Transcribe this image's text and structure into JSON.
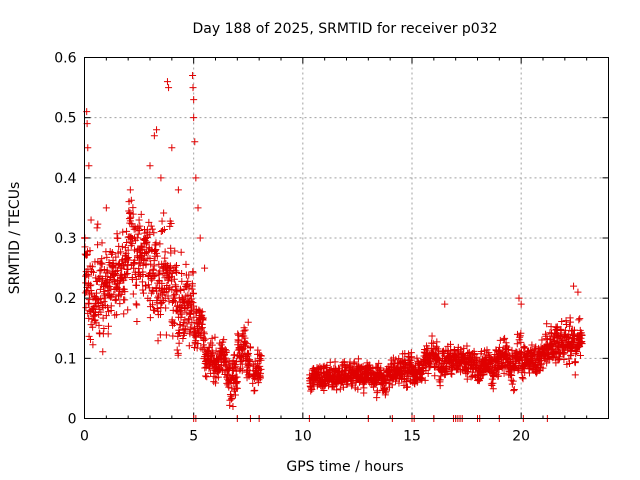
{
  "chart_data": {
    "type": "scatter",
    "title": "Day 188 of 2025, SRMTID for receiver p032",
    "xlabel": "GPS time / hours",
    "ylabel": "SRMTID / TECUs",
    "xlim": [
      0,
      24
    ],
    "ylim": [
      0,
      0.6
    ],
    "xticks": [
      "0",
      "5",
      "10",
      "15",
      "20"
    ],
    "yticks": [
      "0",
      "0.1",
      "0.2",
      "0.3",
      "0.4",
      "0.5",
      "0.6"
    ],
    "marker": "+",
    "color": "#e00000",
    "grid": true,
    "series": [
      {
        "name": "SRMTID",
        "segments": [
          {
            "t0": 0.0,
            "t1": 1.0,
            "mean": 0.22,
            "spread": 0.09
          },
          {
            "t0": 1.0,
            "t1": 2.0,
            "mean": 0.24,
            "spread": 0.08
          },
          {
            "t0": 2.0,
            "t1": 3.0,
            "mean": 0.27,
            "spread": 0.09
          },
          {
            "t0": 3.0,
            "t1": 4.0,
            "mean": 0.24,
            "spread": 0.1
          },
          {
            "t0": 4.0,
            "t1": 5.0,
            "mean": 0.2,
            "spread": 0.08
          },
          {
            "t0": 5.0,
            "t1": 5.5,
            "mean": 0.14,
            "spread": 0.05
          },
          {
            "t0": 5.5,
            "t1": 6.5,
            "mean": 0.1,
            "spread": 0.04
          },
          {
            "t0": 6.5,
            "t1": 7.0,
            "mean": 0.07,
            "spread": 0.04
          },
          {
            "t0": 7.0,
            "t1": 7.6,
            "mean": 0.11,
            "spread": 0.04
          },
          {
            "t0": 7.7,
            "t1": 8.1,
            "mean": 0.08,
            "spread": 0.03
          },
          {
            "t0": 10.3,
            "t1": 12.0,
            "mean": 0.07,
            "spread": 0.025
          },
          {
            "t0": 12.0,
            "t1": 14.0,
            "mean": 0.07,
            "spread": 0.025
          },
          {
            "t0": 14.0,
            "t1": 15.5,
            "mean": 0.08,
            "spread": 0.03
          },
          {
            "t0": 15.5,
            "t1": 17.0,
            "mean": 0.1,
            "spread": 0.03
          },
          {
            "t0": 17.0,
            "t1": 19.0,
            "mean": 0.09,
            "spread": 0.03
          },
          {
            "t0": 19.0,
            "t1": 21.0,
            "mean": 0.1,
            "spread": 0.035
          },
          {
            "t0": 21.0,
            "t1": 22.8,
            "mean": 0.12,
            "spread": 0.04
          }
        ],
        "points": [
          [
            0.1,
            0.51
          ],
          [
            0.12,
            0.49
          ],
          [
            0.15,
            0.45
          ],
          [
            0.2,
            0.42
          ],
          [
            0.3,
            0.33
          ],
          [
            0.5,
            0.2
          ],
          [
            1.0,
            0.35
          ],
          [
            1.5,
            0.3
          ],
          [
            2.1,
            0.38
          ],
          [
            2.5,
            0.33
          ],
          [
            3.0,
            0.42
          ],
          [
            3.2,
            0.47
          ],
          [
            3.3,
            0.48
          ],
          [
            3.5,
            0.4
          ],
          [
            3.8,
            0.56
          ],
          [
            3.85,
            0.55
          ],
          [
            4.0,
            0.45
          ],
          [
            4.3,
            0.38
          ],
          [
            4.95,
            0.57
          ],
          [
            4.97,
            0.55
          ],
          [
            5.0,
            0.53
          ],
          [
            5.0,
            0.5
          ],
          [
            5.05,
            0.46
          ],
          [
            5.1,
            0.4
          ],
          [
            5.2,
            0.35
          ],
          [
            5.3,
            0.3
          ],
          [
            5.5,
            0.25
          ],
          [
            6.8,
            0.02
          ],
          [
            7.0,
            0.05
          ],
          [
            7.5,
            0.16
          ],
          [
            16.5,
            0.19
          ],
          [
            19.9,
            0.2
          ],
          [
            20.0,
            0.19
          ],
          [
            22.4,
            0.22
          ],
          [
            22.6,
            0.21
          ],
          [
            5.0,
            0.0
          ],
          [
            5.1,
            0.0
          ],
          [
            7.0,
            0.0
          ],
          [
            7.6,
            0.0
          ],
          [
            8.0,
            0.0
          ],
          [
            10.3,
            0.0
          ],
          [
            13.0,
            0.0
          ],
          [
            14.1,
            0.0
          ],
          [
            15.0,
            0.0
          ],
          [
            15.1,
            0.0
          ],
          [
            16.0,
            0.0
          ],
          [
            16.9,
            0.0
          ],
          [
            17.0,
            0.0
          ],
          [
            17.1,
            0.0
          ],
          [
            17.2,
            0.0
          ],
          [
            17.3,
            0.0
          ],
          [
            18.0,
            0.0
          ],
          [
            18.1,
            0.0
          ],
          [
            19.0,
            0.0
          ],
          [
            20.1,
            0.0
          ],
          [
            21.2,
            0.0
          ]
        ]
      }
    ]
  }
}
